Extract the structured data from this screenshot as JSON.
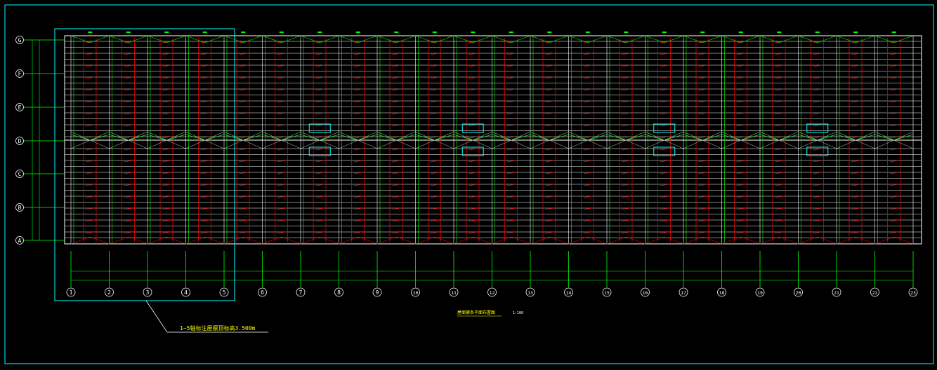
{
  "drawing": {
    "caption": "屋面檩条平面布置图",
    "scale": "1:100",
    "note": "1~5轴标注屋檩顶标高3.500m",
    "row_axes": [
      "G",
      "F",
      "E",
      "D",
      "C",
      "B",
      "A"
    ],
    "col_axes": [
      "1",
      "2",
      "3",
      "4",
      "5",
      "6",
      "7",
      "8",
      "9",
      "10",
      "11",
      "12",
      "13",
      "14",
      "15",
      "16",
      "17",
      "18",
      "19",
      "20",
      "21",
      "22",
      "23"
    ],
    "colors": {
      "background": "#000000",
      "border": "#00ffff",
      "grid": "#ffffff",
      "purlin": "#ff0000",
      "brace": "#00ff00",
      "axis": "#00ff00",
      "highlight": "#00ffff",
      "note": "#ffff00"
    }
  }
}
